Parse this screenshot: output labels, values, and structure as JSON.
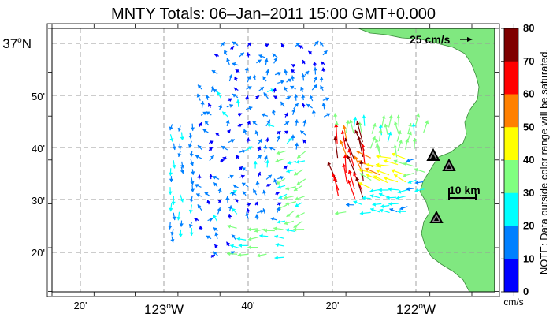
{
  "title": "MNTY Totals: 06–Jan–2011 15:00 GMT+0.000",
  "lat_labels": [
    "37",
    "50'",
    "40'",
    "30'",
    "20'"
  ],
  "lat_deg_suffix": "N",
  "lon_labels": [
    "20'",
    "123",
    "40'",
    "20'",
    "122"
  ],
  "lon_deg_suffix": "W",
  "scale_vector_label": "25 cm/s",
  "scale_bar_label": "10 km",
  "colorbar": {
    "ticks": [
      "80",
      "70",
      "60",
      "50",
      "40",
      "30",
      "20",
      "10",
      "0"
    ],
    "unit": "cm/s",
    "note": "NOTE: Data outside color range will be saturated.",
    "colors": [
      "#7f0000",
      "#ff0000",
      "#ff8000",
      "#ffff00",
      "#80ff80",
      "#00ffff",
      "#0080ff",
      "#0000ff"
    ]
  },
  "land_color": "#80e880",
  "stations": [
    "station-1",
    "station-2",
    "station-3"
  ]
}
